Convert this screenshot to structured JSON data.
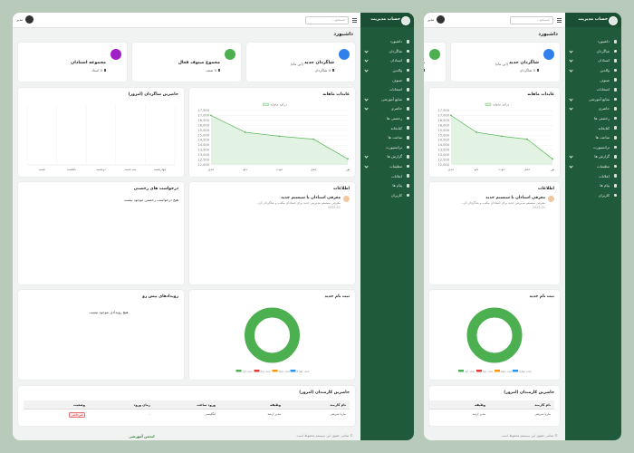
{
  "sidebar": {
    "title": "حساب مدیریت",
    "items": [
      "داشبورد",
      "شاگردان",
      "استادان",
      "والدین",
      "صنوف",
      "امتحانات",
      "منابع آموزشی",
      "حاضری",
      "رخصتی ها",
      "کتابخانه",
      "ساعت ها",
      "ترانسپورت",
      "گزارش ها",
      "تنظیمات",
      "اعلانات",
      "پیام ها",
      "کاربران"
    ]
  },
  "topbar": {
    "search": "جستجو...",
    "user": "مدیر"
  },
  "page_title": "داشبورد",
  "cards": [
    {
      "title": "شاگردان جدید",
      "note": "(این ماه)",
      "value": "0 شاگردان",
      "color": "#2f80ed"
    },
    {
      "title": "مجموع صنوف فعال",
      "value": "0 صنف",
      "color": "#4caf50"
    },
    {
      "title": "مجموعه استادان",
      "value": "0 استاد",
      "color": "#a020c8"
    }
  ],
  "revenue_chart": {
    "type": "line",
    "title": "عایدات ماهانه",
    "legend": "درآمد ماهانه",
    "color": "#5cb85c",
    "categories": [
      "جدی",
      "دلو",
      "حوت",
      "حمل",
      "ثور"
    ],
    "values": [
      17000,
      15300,
      14900,
      14600,
      12600
    ],
    "ylim": [
      12000,
      17500
    ],
    "yticks": [
      {
        "value": 12000,
        "label": "12,000"
      },
      {
        "value": 12500,
        "label": "12,500"
      },
      {
        "value": 13000,
        "label": "13,000"
      },
      {
        "value": 13500,
        "label": "13,500"
      },
      {
        "value": 14000,
        "label": "14,000"
      },
      {
        "value": 14500,
        "label": "14,500"
      },
      {
        "value": 15000,
        "label": "15,000"
      },
      {
        "value": 15500,
        "label": "15,500"
      },
      {
        "value": 16000,
        "label": "16,000"
      },
      {
        "value": 16500,
        "label": "16,500"
      },
      {
        "value": 17000,
        "label": "17,000"
      },
      {
        "value": 17500,
        "label": "17,500"
      }
    ]
  },
  "attendance_chart": {
    "type": "bar",
    "title": "حاضرین شاگردان (امروز)",
    "categories": [
      "شنبه",
      "یکشنبه",
      "دوشنبه",
      "سه شنبه",
      "چهارشنبه"
    ]
  },
  "announcements": {
    "title": "اطلاعات",
    "items": [
      {
        "title": "معرفی استادان با سیستم جدید",
        "text": "معرفی سیستم مدیریتی جدید برای استادان مکتب و شاگردان آن...",
        "date": "2025-01"
      }
    ]
  },
  "leave_requests": {
    "title": "درخواست های رخصتی",
    "empty": "هیچ درخواست رخصتی موجود نیست"
  },
  "events": {
    "title": "رویدادهای پیش رو",
    "empty": "هیچ رویدادی موجود نیست"
  },
  "registrations": {
    "type": "pie",
    "title": "ثبت نام جدید",
    "series": [
      {
        "name": "صنف اول",
        "color": "#4caf50",
        "value": 100
      },
      {
        "name": "صنف دوم",
        "color": "#e53935",
        "value": 0
      },
      {
        "name": "صنف سوم",
        "color": "#ff9800",
        "value": 0
      },
      {
        "name": "صنف چهارم",
        "color": "#2196f3",
        "value": 0
      }
    ]
  },
  "staff_table": {
    "title": "حاضرین کارمندان (امروز)",
    "columns": [
      "نام کارمند",
      "وظیفه",
      "ورود ساعت",
      "زمان ورود",
      "وضعیت"
    ],
    "rows": [
      [
        "ماریا شریفی",
        "مدیر ارشد",
        "انگلیسی",
        "-",
        "غیرحاضر"
      ]
    ]
  },
  "footer": {
    "copyright": "© تمامی حقوق این سیستم محفوظ است",
    "brand": "انجمن آموزشی"
  }
}
